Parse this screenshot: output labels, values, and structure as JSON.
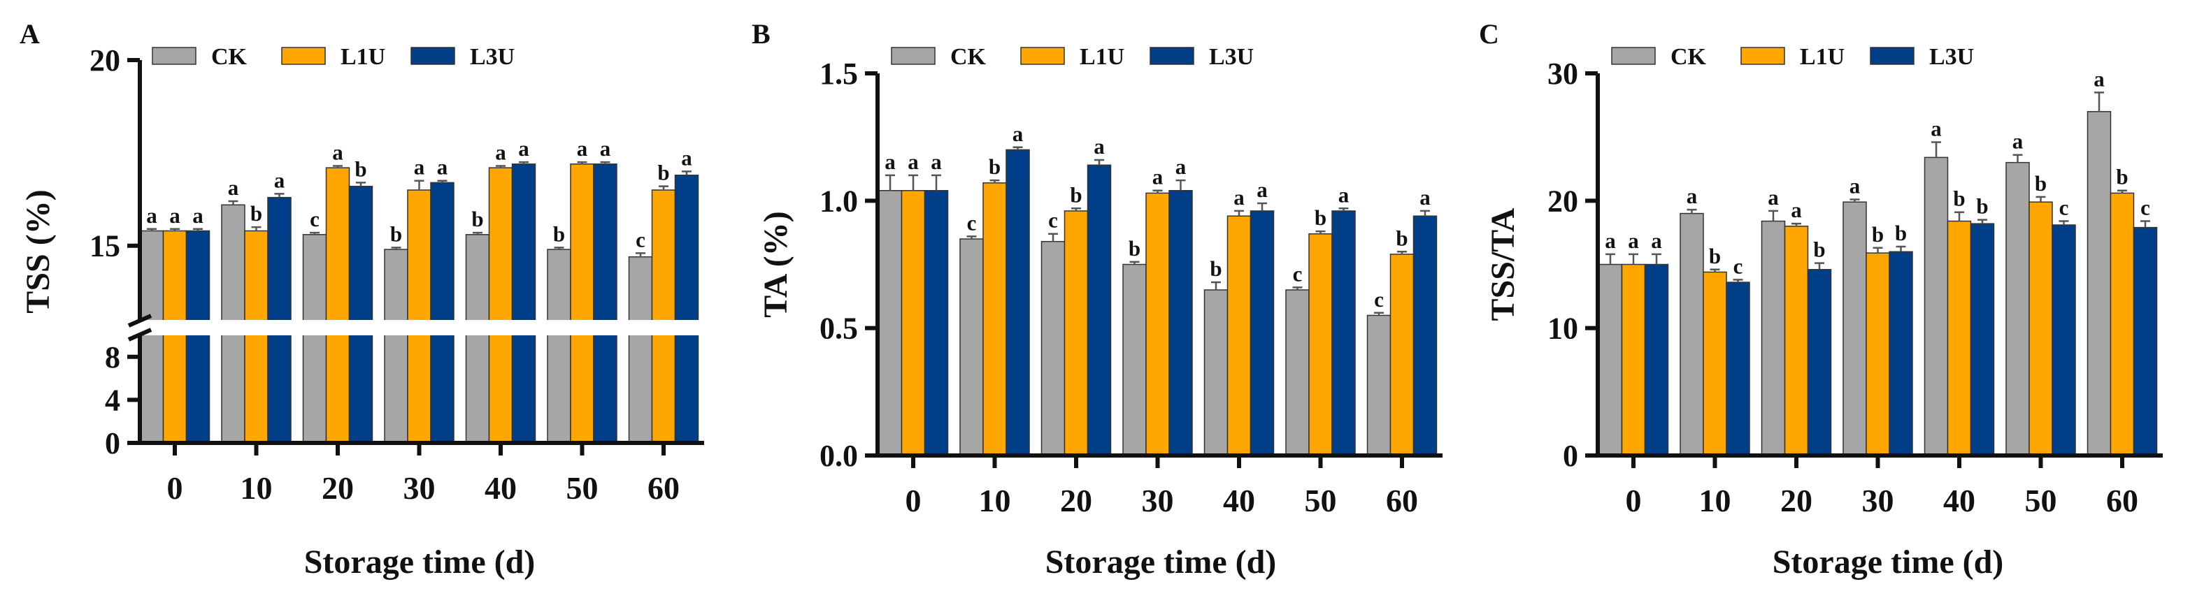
{
  "chart_data": [
    {
      "type": "bar",
      "panel_label": "A",
      "categories": [
        "0",
        "10",
        "20",
        "30",
        "40",
        "50",
        "60"
      ],
      "xlabel": "Storage time (d)",
      "ylabel": "TSS (%)",
      "axis_break": {
        "lower_range": [
          0,
          10
        ],
        "upper_range": [
          13,
          20
        ]
      },
      "y_ticks_lower": [
        "0",
        "4",
        "8"
      ],
      "y_ticks_upper": [
        "15",
        "20"
      ],
      "series": [
        {
          "name": "CK",
          "color": "#a6a6a6",
          "values": [
            15.4,
            16.1,
            15.3,
            14.9,
            15.3,
            14.9,
            14.7
          ],
          "errors": [
            0.05,
            0.1,
            0.05,
            0.05,
            0.05,
            0.05,
            0.1
          ],
          "letters": [
            "a",
            "a",
            "c",
            "b",
            "b",
            "b",
            "c"
          ]
        },
        {
          "name": "L1U",
          "color": "#ffa600",
          "values": [
            15.4,
            15.4,
            17.1,
            16.5,
            17.1,
            17.2,
            16.5
          ],
          "errors": [
            0.05,
            0.1,
            0.05,
            0.25,
            0.05,
            0.05,
            0.1
          ],
          "letters": [
            "a",
            "b",
            "a",
            "a",
            "a",
            "a",
            "b"
          ]
        },
        {
          "name": "L3U",
          "color": "#003f87",
          "values": [
            15.4,
            16.3,
            16.6,
            16.7,
            17.2,
            17.2,
            16.9
          ],
          "errors": [
            0.05,
            0.1,
            0.1,
            0.05,
            0.05,
            0.05,
            0.1
          ],
          "letters": [
            "a",
            "a",
            "b",
            "a",
            "a",
            "a",
            "a"
          ]
        }
      ]
    },
    {
      "type": "bar",
      "panel_label": "B",
      "categories": [
        "0",
        "10",
        "20",
        "30",
        "40",
        "50",
        "60"
      ],
      "xlabel": "Storage time (d)",
      "ylabel": "TA (%)",
      "ylim": [
        0,
        1.5
      ],
      "y_ticks": [
        "0.0",
        "0.5",
        "1.0",
        "1.5"
      ],
      "series": [
        {
          "name": "CK",
          "color": "#a6a6a6",
          "values": [
            1.04,
            0.85,
            0.84,
            0.75,
            0.65,
            0.65,
            0.55
          ],
          "errors": [
            0.06,
            0.01,
            0.03,
            0.01,
            0.03,
            0.01,
            0.01
          ],
          "letters": [
            "a",
            "c",
            "c",
            "b",
            "b",
            "c",
            "c"
          ]
        },
        {
          "name": "L1U",
          "color": "#ffa600",
          "values": [
            1.04,
            1.07,
            0.96,
            1.03,
            0.94,
            0.87,
            0.79
          ],
          "errors": [
            0.06,
            0.01,
            0.01,
            0.01,
            0.02,
            0.01,
            0.01
          ],
          "letters": [
            "a",
            "b",
            "b",
            "a",
            "a",
            "b",
            "b"
          ]
        },
        {
          "name": "L3U",
          "color": "#003f87",
          "values": [
            1.04,
            1.2,
            1.14,
            1.04,
            0.96,
            0.96,
            0.94
          ],
          "errors": [
            0.06,
            0.01,
            0.02,
            0.04,
            0.03,
            0.01,
            0.02
          ],
          "letters": [
            "a",
            "a",
            "a",
            "a",
            "a",
            "a",
            "a"
          ]
        }
      ]
    },
    {
      "type": "bar",
      "panel_label": "C",
      "categories": [
        "0",
        "10",
        "20",
        "30",
        "40",
        "50",
        "60"
      ],
      "xlabel": "Storage time (d)",
      "ylabel": "TSS/TA",
      "ylim": [
        0,
        30
      ],
      "y_ticks": [
        "0",
        "10",
        "20",
        "30"
      ],
      "series": [
        {
          "name": "CK",
          "color": "#a6a6a6",
          "values": [
            15.0,
            19.0,
            18.4,
            19.9,
            23.4,
            23.0,
            27.0
          ],
          "errors": [
            0.8,
            0.3,
            0.8,
            0.2,
            1.2,
            0.6,
            1.5
          ],
          "letters": [
            "a",
            "a",
            "a",
            "a",
            "a",
            "a",
            "a"
          ]
        },
        {
          "name": "L1U",
          "color": "#ffa600",
          "values": [
            15.0,
            14.4,
            18.0,
            15.9,
            18.4,
            19.9,
            20.6
          ],
          "errors": [
            0.8,
            0.2,
            0.2,
            0.4,
            0.7,
            0.4,
            0.2
          ],
          "letters": [
            "a",
            "b",
            "a",
            "b",
            "b",
            "b",
            "b"
          ]
        },
        {
          "name": "L3U",
          "color": "#003f87",
          "values": [
            15.0,
            13.6,
            14.6,
            16.0,
            18.2,
            18.1,
            17.9
          ],
          "errors": [
            0.8,
            0.2,
            0.5,
            0.4,
            0.3,
            0.3,
            0.5
          ],
          "letters": [
            "a",
            "c",
            "b",
            "b",
            "b",
            "c",
            "c"
          ]
        }
      ]
    }
  ]
}
